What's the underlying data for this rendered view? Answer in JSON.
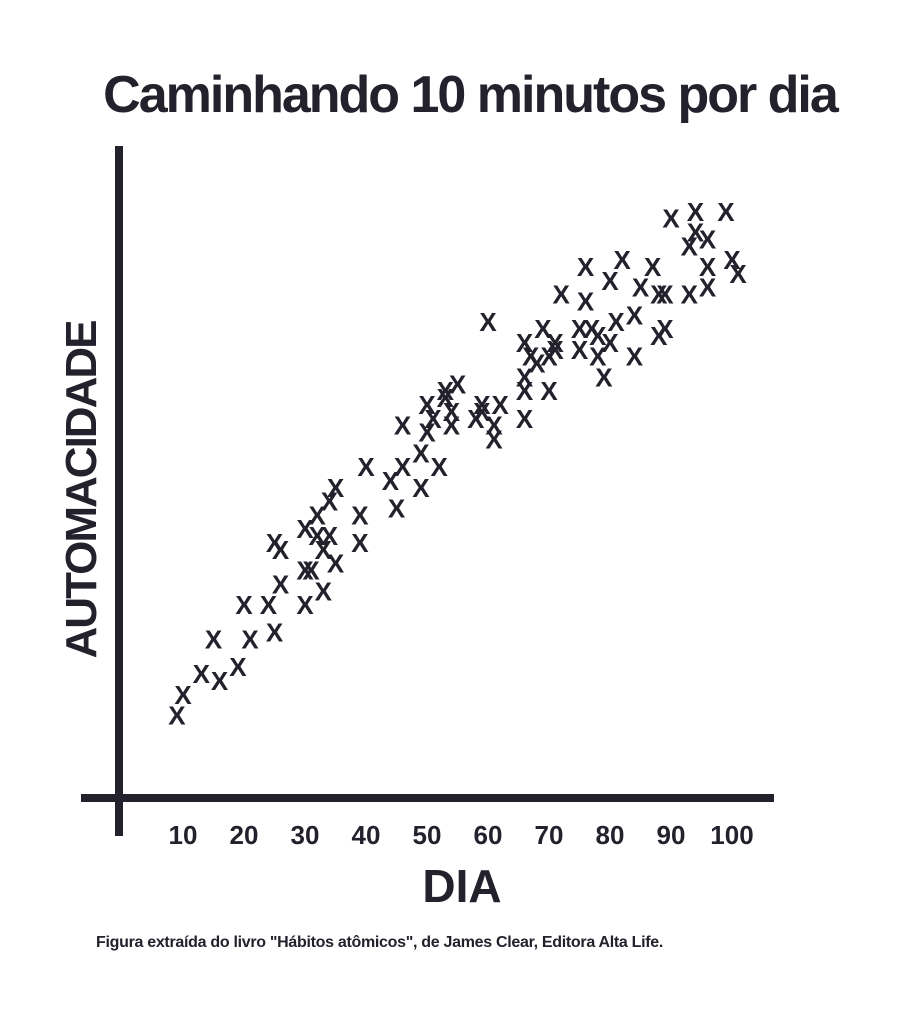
{
  "colors": {
    "ink": "#23212c",
    "background": "#ffffff"
  },
  "caption": "Figura extraída do livro \"Hábitos atômicos\", de James Clear, Editora Alta Life.",
  "chart_data": {
    "type": "scatter",
    "title": "Caminhando 10 minutos por dia",
    "xlabel": "DIA",
    "ylabel": "AUTOMACIDADE",
    "marker": "X",
    "x_ticks": [
      "10",
      "20",
      "30",
      "40",
      "50",
      "60",
      "70",
      "80",
      "90",
      "100"
    ],
    "xlim": [
      0,
      104
    ],
    "ylim": [
      0,
      100
    ],
    "grid": false,
    "y_ticks_shown": false,
    "x": [
      9,
      10,
      13,
      15,
      16,
      19,
      20,
      21,
      24,
      25,
      25,
      26,
      26,
      30,
      30,
      30,
      31,
      32,
      32,
      33,
      33,
      34,
      34,
      35,
      35,
      39,
      39,
      40,
      44,
      45,
      46,
      46,
      49,
      49,
      50,
      50,
      51,
      52,
      53,
      53,
      54,
      54,
      55,
      58,
      59,
      59,
      60,
      61,
      61,
      62,
      66,
      66,
      66,
      66,
      67,
      68,
      69,
      70,
      70,
      71,
      71,
      72,
      75,
      75,
      76,
      76,
      77,
      78,
      78,
      79,
      80,
      80,
      81,
      82,
      84,
      84,
      85,
      87,
      88,
      88,
      89,
      89,
      90,
      93,
      93,
      94,
      94,
      96,
      96,
      96,
      99,
      100,
      101
    ],
    "y": [
      15,
      18,
      21,
      26,
      20,
      22,
      31,
      26,
      31,
      27,
      40,
      34,
      39,
      31,
      36,
      42,
      36,
      41,
      44,
      33,
      39,
      41,
      46,
      37,
      48,
      44,
      40,
      51,
      49,
      45,
      51,
      57,
      48,
      53,
      56,
      60,
      58,
      51,
      61,
      62,
      57,
      59,
      63,
      58,
      59,
      60,
      72,
      57,
      55,
      60,
      64,
      62,
      58,
      69,
      67,
      66,
      71,
      62,
      67,
      69,
      68,
      76,
      68,
      71,
      75,
      80,
      71,
      70,
      67,
      64,
      69,
      78,
      72,
      81,
      73,
      67,
      77,
      80,
      70,
      76,
      76,
      71,
      87,
      83,
      76,
      88,
      85,
      77,
      84,
      80,
      88,
      81,
      79
    ]
  }
}
